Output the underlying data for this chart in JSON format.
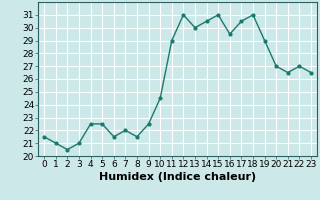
{
  "x": [
    0,
    1,
    2,
    3,
    4,
    5,
    6,
    7,
    8,
    9,
    10,
    11,
    12,
    13,
    14,
    15,
    16,
    17,
    18,
    19,
    20,
    21,
    22,
    23
  ],
  "y": [
    21.5,
    21.0,
    20.5,
    21.0,
    22.5,
    22.5,
    21.5,
    22.0,
    21.5,
    22.5,
    24.5,
    29.0,
    31.0,
    30.0,
    30.5,
    31.0,
    29.5,
    30.5,
    31.0,
    29.0,
    27.0,
    26.5,
    27.0,
    26.5
  ],
  "line_color": "#1a7a6e",
  "marker_color": "#1a7a6e",
  "bg_color": "#cce8e8",
  "grid_color": "#ffffff",
  "xlabel": "Humidex (Indice chaleur)",
  "ylim": [
    20,
    32
  ],
  "xlim": [
    -0.5,
    23.5
  ],
  "yticks": [
    20,
    21,
    22,
    23,
    24,
    25,
    26,
    27,
    28,
    29,
    30,
    31
  ],
  "xticks": [
    0,
    1,
    2,
    3,
    4,
    5,
    6,
    7,
    8,
    9,
    10,
    11,
    12,
    13,
    14,
    15,
    16,
    17,
    18,
    19,
    20,
    21,
    22,
    23
  ],
  "tick_fontsize": 6.5,
  "xlabel_fontsize": 8
}
